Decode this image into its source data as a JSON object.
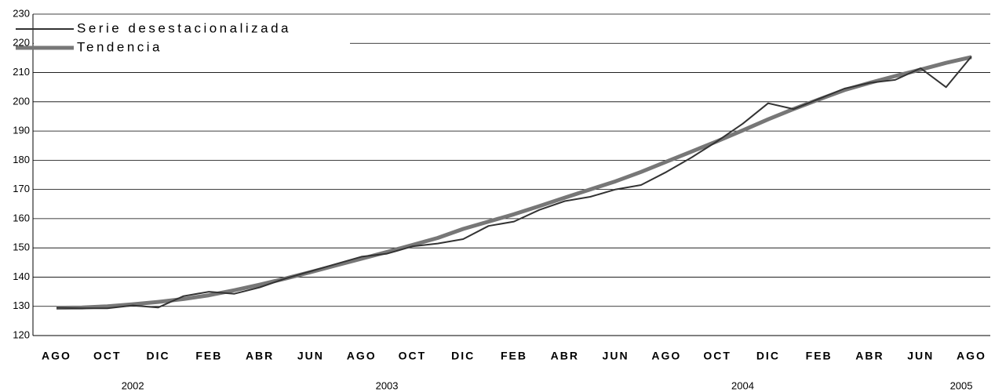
{
  "chart_data": {
    "type": "line",
    "categories": [
      "AGO",
      null,
      "OCT",
      null,
      "DIC",
      null,
      "FEB",
      null,
      "ABR",
      null,
      "JUN",
      null,
      "AGO",
      null,
      "OCT",
      null,
      "DIC",
      null,
      "FEB",
      null,
      "ABR",
      null,
      "JUN",
      null,
      "AGO",
      null,
      "OCT",
      null,
      "DIC",
      null,
      "FEB",
      null,
      "ABR",
      null,
      "JUN",
      null,
      "AGO"
    ],
    "years": [
      "2002",
      "2003",
      "2004",
      "2005"
    ],
    "series": [
      {
        "name": "Serie desestacionalizada",
        "color": "#333333",
        "values": [
          129.5,
          129.3,
          129.3,
          130.3,
          129.6,
          133.5,
          135,
          134.3,
          136.5,
          139.5,
          142,
          144.5,
          147,
          148,
          150.5,
          151.5,
          153,
          157.5,
          159,
          163,
          166,
          167.5,
          170,
          171.5,
          176,
          181,
          186.5,
          192.5,
          199.5,
          197.5,
          201,
          204.5,
          206.5,
          207.5,
          211.5,
          205,
          215.5
        ]
      },
      {
        "name": "Tendencia",
        "color": "#777777",
        "values": [
          129.5,
          129.6,
          130,
          130.7,
          131.5,
          132.5,
          133.8,
          135.5,
          137.4,
          139.5,
          141.7,
          144,
          146.3,
          148.6,
          151,
          153.4,
          156.5,
          159,
          161.5,
          164.3,
          167.2,
          170,
          172.8,
          176,
          179.5,
          183,
          186.5,
          190.2,
          194,
          197.5,
          200.8,
          204,
          206.5,
          208.8,
          211,
          213.3,
          215.3
        ]
      }
    ],
    "ylim": [
      120,
      230
    ],
    "yticks": [
      120,
      130,
      140,
      150,
      160,
      170,
      180,
      190,
      200,
      210,
      220,
      230
    ],
    "grid": true
  }
}
